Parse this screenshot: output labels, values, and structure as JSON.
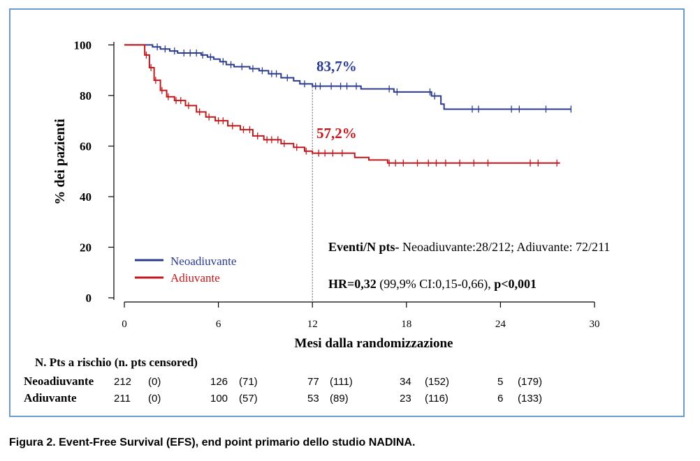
{
  "colors": {
    "neo": "#2a3a8f",
    "adj": "#c0171b",
    "border": "#6d9ad0"
  },
  "chart_data": {
    "type": "line",
    "xlabel": "Mesi dalla randomizzazione",
    "ylabel": "% dei pazienti",
    "xlim": [
      0,
      30
    ],
    "ylim": [
      0,
      100
    ],
    "xticks": [
      0,
      6,
      12,
      18,
      24,
      30
    ],
    "yticks": [
      0,
      20,
      40,
      60,
      80,
      100
    ],
    "legend_position": "bottom-left",
    "reference_line_x": 12,
    "series": [
      {
        "name": "Neoadiuvante",
        "color": "#2a3a8f",
        "steps": [
          [
            0,
            100
          ],
          [
            1.6,
            100
          ],
          [
            1.8,
            99.2
          ],
          [
            2.3,
            98.4
          ],
          [
            2.9,
            97.6
          ],
          [
            3.4,
            96.8
          ],
          [
            4.5,
            96.8
          ],
          [
            4.9,
            96
          ],
          [
            5.3,
            95.2
          ],
          [
            5.7,
            94.4
          ],
          [
            6.1,
            93.4
          ],
          [
            6.5,
            92.2
          ],
          [
            7.0,
            91.4
          ],
          [
            8.0,
            90.6
          ],
          [
            8.6,
            89.8
          ],
          [
            9.2,
            88.6
          ],
          [
            10.0,
            87.0
          ],
          [
            10.8,
            85.8
          ],
          [
            11.2,
            84.6
          ],
          [
            12.0,
            83.7
          ],
          [
            14.5,
            83.7
          ],
          [
            15.1,
            82.6
          ],
          [
            16.8,
            82.6
          ],
          [
            17.2,
            81.4
          ],
          [
            19.3,
            81.4
          ],
          [
            19.6,
            79.8
          ],
          [
            20.2,
            76.6
          ],
          [
            20.4,
            74.6
          ],
          [
            28.5,
            74.6
          ]
        ],
        "censored_x": [
          2.1,
          2.6,
          3.2,
          3.8,
          4.2,
          4.6,
          5.0,
          5.5,
          6.3,
          6.8,
          7.5,
          8.2,
          8.8,
          9.4,
          9.7,
          10.4,
          11.5,
          12.2,
          12.5,
          13.2,
          13.8,
          14.2,
          14.8,
          16.9,
          17.4,
          19.5,
          19.8,
          22.2,
          22.6,
          24.7,
          25.2,
          26.9,
          28.5
        ],
        "annotation": "83,7%"
      },
      {
        "name": "Adiuvante",
        "color": "#c0171b",
        "steps": [
          [
            0,
            100
          ],
          [
            1.0,
            100
          ],
          [
            1.3,
            96
          ],
          [
            1.6,
            91
          ],
          [
            1.9,
            86
          ],
          [
            2.3,
            82
          ],
          [
            2.7,
            79.5
          ],
          [
            3.2,
            78
          ],
          [
            3.9,
            76
          ],
          [
            4.6,
            73.5
          ],
          [
            5.2,
            71.5
          ],
          [
            5.8,
            70
          ],
          [
            6.6,
            68
          ],
          [
            7.4,
            66.5
          ],
          [
            8.2,
            64
          ],
          [
            8.9,
            62.5
          ],
          [
            10.0,
            61
          ],
          [
            10.8,
            59.5
          ],
          [
            11.5,
            58
          ],
          [
            12.0,
            57.2
          ],
          [
            14.2,
            57.2
          ],
          [
            14.7,
            55.5
          ],
          [
            15.6,
            54.5
          ],
          [
            16.8,
            53.3
          ],
          [
            27.8,
            53.3
          ]
        ],
        "censored_x": [
          1.4,
          1.7,
          2.0,
          2.4,
          2.8,
          3.3,
          3.6,
          4.1,
          4.8,
          5.4,
          6.0,
          6.3,
          6.9,
          7.6,
          8.0,
          8.5,
          9.1,
          9.4,
          9.8,
          10.2,
          11.0,
          11.6,
          12.4,
          12.8,
          13.3,
          13.9,
          16.9,
          17.3,
          17.8,
          18.7,
          19.4,
          19.9,
          20.5,
          21.4,
          22.3,
          23.2,
          25.9,
          26.4,
          27.6
        ],
        "annotation": "57,2%"
      }
    ],
    "stats_line1_bold": "Eventi/N pts-",
    "stats_line1_rest": " Neoadiuvante:28/212; Adiuvante: 72/211",
    "stats_line2_bold": "HR=0,32",
    "stats_line2_mid": " (99,9% CI:0,15-0,66), ",
    "stats_line2_end": "p<0,001"
  },
  "risk_table": {
    "header": "N. Pts a rischio (n. pts censored)",
    "rows": [
      {
        "name": "Neoadiuvante",
        "cells": [
          {
            "n": "212",
            "c": "(0)"
          },
          {
            "n": "126",
            "c": "(71)"
          },
          {
            "n": "77",
            "c": "(111)"
          },
          {
            "n": "34",
            "c": "(152)"
          },
          {
            "n": "5",
            "c": "(179)"
          }
        ]
      },
      {
        "name": "Adiuvante",
        "cells": [
          {
            "n": "211",
            "c": "(0)"
          },
          {
            "n": "100",
            "c": "(57)"
          },
          {
            "n": "53",
            "c": "(89)"
          },
          {
            "n": "23",
            "c": "(116)"
          },
          {
            "n": "6",
            "c": "(133)"
          }
        ]
      }
    ]
  },
  "caption": "Figura 2. Event-Free Survival (EFS), end point primario dello studio NADINA."
}
